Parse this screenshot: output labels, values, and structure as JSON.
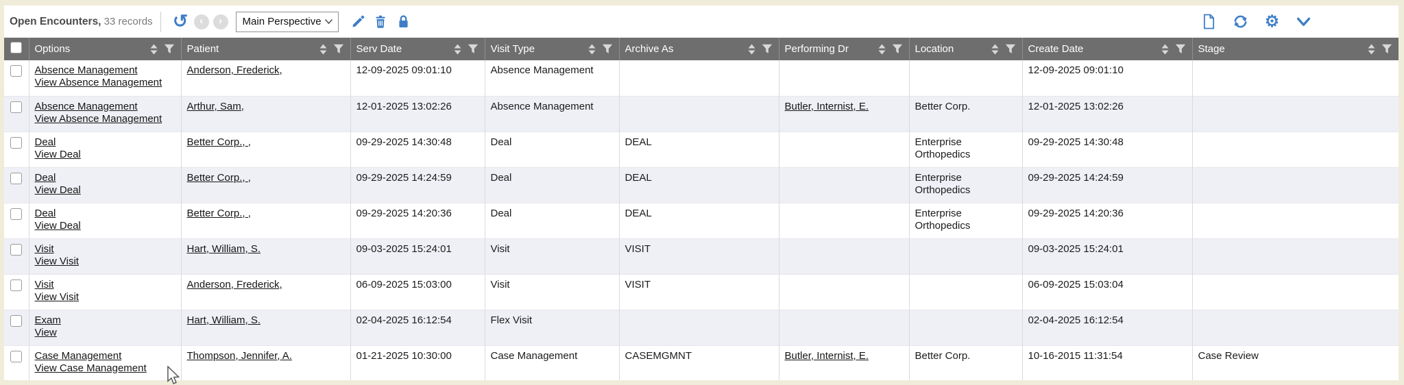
{
  "colors": {
    "accent_blue": "#3e7ec6",
    "header_gray": "#6e6e6e",
    "row_alt": "#eff0f6",
    "page_bg": "#f0ecda"
  },
  "toolbar": {
    "title": "Open Encounters,",
    "records": "33 records",
    "prev_label": "‹",
    "next_label": "›",
    "undo_glyph": "↺",
    "gear_glyph": "⚙",
    "perspective_selected": "Main Perspective"
  },
  "table": {
    "columns": [
      {
        "key": "options",
        "label": "Options"
      },
      {
        "key": "patient",
        "label": "Patient"
      },
      {
        "key": "serv_date",
        "label": "Serv Date"
      },
      {
        "key": "visit_type",
        "label": "Visit Type"
      },
      {
        "key": "archive_as",
        "label": "Archive As"
      },
      {
        "key": "performing_dr",
        "label": "Performing Dr"
      },
      {
        "key": "location",
        "label": "Location"
      },
      {
        "key": "create_date",
        "label": "Create Date"
      },
      {
        "key": "stage",
        "label": "Stage"
      }
    ],
    "rows": [
      {
        "options": [
          "Absence Management",
          "View Absence Management"
        ],
        "patient": "Anderson, Frederick,",
        "serv_date": "12-09-2025 09:01:10",
        "visit_type": "Absence Management",
        "archive_as": "",
        "performing_dr": "",
        "location": "",
        "create_date": "12-09-2025 09:01:10",
        "stage": ""
      },
      {
        "options": [
          "Absence Management",
          "View Absence Management"
        ],
        "patient": "Arthur, Sam,",
        "serv_date": "12-01-2025 13:02:26",
        "visit_type": "Absence Management",
        "archive_as": "",
        "performing_dr": "Butler, Internist, E.",
        "location": "Better Corp.",
        "create_date": "12-01-2025 13:02:26",
        "stage": ""
      },
      {
        "options": [
          "Deal",
          "View Deal"
        ],
        "patient": "Better Corp., ,",
        "serv_date": "09-29-2025 14:30:48",
        "visit_type": "Deal",
        "archive_as": "DEAL",
        "performing_dr": "",
        "location": "Enterprise Orthopedics",
        "create_date": "09-29-2025 14:30:48",
        "stage": ""
      },
      {
        "options": [
          "Deal",
          "View Deal"
        ],
        "patient": "Better Corp., ,",
        "serv_date": "09-29-2025 14:24:59",
        "visit_type": "Deal",
        "archive_as": "DEAL",
        "performing_dr": "",
        "location": "Enterprise Orthopedics",
        "create_date": "09-29-2025 14:24:59",
        "stage": ""
      },
      {
        "options": [
          "Deal",
          "View Deal"
        ],
        "patient": "Better Corp., ,",
        "serv_date": "09-29-2025 14:20:36",
        "visit_type": "Deal",
        "archive_as": "DEAL",
        "performing_dr": "",
        "location": "Enterprise Orthopedics",
        "create_date": "09-29-2025 14:20:36",
        "stage": ""
      },
      {
        "options": [
          "Visit",
          "View Visit"
        ],
        "patient": "Hart, William, S.",
        "serv_date": "09-03-2025 15:24:01",
        "visit_type": "Visit",
        "archive_as": "VISIT",
        "performing_dr": "",
        "location": "",
        "create_date": "09-03-2025 15:24:01",
        "stage": ""
      },
      {
        "options": [
          "Visit",
          "View Visit"
        ],
        "patient": "Anderson, Frederick,",
        "serv_date": "06-09-2025 15:03:00",
        "visit_type": "Visit",
        "archive_as": "VISIT",
        "performing_dr": "",
        "location": "",
        "create_date": "06-09-2025 15:03:04",
        "stage": ""
      },
      {
        "options": [
          "Exam",
          "View"
        ],
        "patient": "Hart, William, S.",
        "serv_date": "02-04-2025 16:12:54",
        "visit_type": "Flex Visit",
        "archive_as": "",
        "performing_dr": "",
        "location": "",
        "create_date": "02-04-2025 16:12:54",
        "stage": ""
      },
      {
        "options": [
          "Case Management",
          "View Case Management"
        ],
        "patient": "Thompson, Jennifer, A.",
        "serv_date": "01-21-2025 10:30:00",
        "visit_type": "Case Management",
        "archive_as": "CASEMGMNT",
        "performing_dr": "Butler, Internist, E.",
        "location": "Better Corp.",
        "create_date": "10-16-2015 11:31:54",
        "stage": "Case Review"
      }
    ]
  }
}
